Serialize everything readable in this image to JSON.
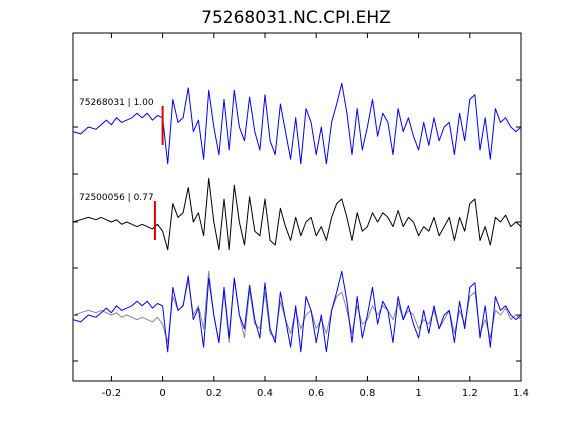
{
  "chart_data": {
    "type": "line",
    "title": "75268031.NC.CPI.EHZ",
    "xlabel": "",
    "ylabel": "",
    "xlim": [
      -0.35,
      1.4
    ],
    "x_ticks": [
      "-0.2",
      "0",
      "0.2",
      "0.4",
      "0.6",
      "0.8",
      "1",
      "1.2",
      "1.4"
    ],
    "x_tick_values": [
      -0.2,
      0,
      0.2,
      0.4,
      0.6,
      0.8,
      1.0,
      1.2,
      1.4
    ],
    "y_ticks_visible": false,
    "grid": false,
    "panels": [
      {
        "label": "75268031 | 1.00",
        "pick_time": 0.0,
        "series": [
          {
            "color": "#0000ff",
            "x": [
              -0.35,
              -0.32,
              -0.29,
              -0.26,
              -0.24,
              -0.22,
              -0.2,
              -0.18,
              -0.16,
              -0.14,
              -0.12,
              -0.1,
              -0.08,
              -0.06,
              -0.04,
              -0.02,
              0.0,
              0.02,
              0.04,
              0.06,
              0.08,
              0.1,
              0.12,
              0.14,
              0.16,
              0.18,
              0.2,
              0.22,
              0.24,
              0.26,
              0.28,
              0.3,
              0.32,
              0.34,
              0.36,
              0.38,
              0.4,
              0.42,
              0.44,
              0.46,
              0.48,
              0.5,
              0.52,
              0.54,
              0.56,
              0.58,
              0.6,
              0.62,
              0.64,
              0.66,
              0.68,
              0.7,
              0.72,
              0.74,
              0.76,
              0.78,
              0.8,
              0.82,
              0.84,
              0.86,
              0.88,
              0.9,
              0.92,
              0.94,
              0.96,
              0.98,
              1.0,
              1.02,
              1.04,
              1.06,
              1.08,
              1.1,
              1.12,
              1.14,
              1.16,
              1.18,
              1.2,
              1.22,
              1.24,
              1.26,
              1.28,
              1.3,
              1.32,
              1.34,
              1.36,
              1.38,
              1.4
            ],
            "y": [
              -0.1,
              -0.15,
              0.0,
              -0.05,
              0.05,
              0.15,
              0.05,
              0.2,
              0.1,
              0.15,
              0.2,
              0.3,
              0.2,
              0.3,
              0.15,
              0.25,
              0.2,
              -0.8,
              0.6,
              0.1,
              0.2,
              0.85,
              -0.1,
              0.15,
              -0.7,
              0.8,
              0.0,
              -0.6,
              0.6,
              -0.5,
              0.8,
              0.0,
              -0.3,
              0.65,
              -0.1,
              -0.5,
              0.7,
              -0.3,
              -0.6,
              0.5,
              -0.1,
              -0.7,
              0.2,
              -0.8,
              0.4,
              0.1,
              -0.6,
              0.0,
              -0.8,
              0.1,
              0.5,
              0.95,
              0.3,
              -0.6,
              0.4,
              -0.5,
              0.0,
              0.6,
              -0.2,
              0.3,
              0.1,
              -0.6,
              0.4,
              -0.1,
              0.2,
              -0.2,
              -0.5,
              0.1,
              -0.4,
              0.2,
              -0.3,
              0.0,
              0.1,
              -0.6,
              0.3,
              -0.3,
              0.6,
              0.7,
              -0.5,
              0.2,
              -0.7,
              0.4,
              0.1,
              0.2,
              0.0,
              -0.1,
              0.0
            ]
          }
        ]
      },
      {
        "label": "72500056 | 0.77",
        "pick_time": -0.03,
        "series": [
          {
            "color": "#000000",
            "x": [
              -0.35,
              -0.32,
              -0.29,
              -0.26,
              -0.24,
              -0.22,
              -0.2,
              -0.18,
              -0.16,
              -0.14,
              -0.12,
              -0.1,
              -0.08,
              -0.06,
              -0.04,
              -0.02,
              0.0,
              0.02,
              0.04,
              0.06,
              0.08,
              0.1,
              0.12,
              0.14,
              0.16,
              0.18,
              0.2,
              0.22,
              0.24,
              0.26,
              0.28,
              0.3,
              0.32,
              0.34,
              0.36,
              0.38,
              0.4,
              0.42,
              0.44,
              0.46,
              0.48,
              0.5,
              0.52,
              0.54,
              0.56,
              0.58,
              0.6,
              0.62,
              0.64,
              0.66,
              0.68,
              0.7,
              0.72,
              0.74,
              0.76,
              0.78,
              0.8,
              0.82,
              0.84,
              0.86,
              0.88,
              0.9,
              0.92,
              0.94,
              0.96,
              0.98,
              1.0,
              1.02,
              1.04,
              1.06,
              1.08,
              1.1,
              1.12,
              1.14,
              1.16,
              1.18,
              1.2,
              1.22,
              1.24,
              1.26,
              1.28,
              1.3,
              1.32,
              1.34,
              1.36,
              1.38,
              1.4
            ],
            "y": [
              0.0,
              0.05,
              0.1,
              0.05,
              0.1,
              0.05,
              0.0,
              0.05,
              -0.05,
              0.0,
              -0.05,
              -0.1,
              -0.05,
              -0.1,
              -0.15,
              -0.05,
              -0.2,
              -0.6,
              0.4,
              0.1,
              0.2,
              0.75,
              0.0,
              0.2,
              -0.3,
              0.95,
              0.0,
              -0.6,
              0.5,
              -0.6,
              0.8,
              0.0,
              -0.5,
              0.55,
              -0.2,
              -0.3,
              0.5,
              -0.4,
              -0.5,
              0.3,
              -0.1,
              -0.4,
              0.1,
              -0.3,
              0.0,
              0.1,
              -0.3,
              -0.1,
              -0.4,
              0.1,
              0.4,
              0.5,
              0.1,
              -0.4,
              0.2,
              -0.2,
              -0.1,
              0.2,
              0.0,
              0.2,
              0.1,
              -0.1,
              0.25,
              -0.1,
              0.1,
              0.0,
              -0.3,
              -0.1,
              -0.2,
              0.1,
              -0.3,
              -0.1,
              0.1,
              -0.4,
              0.1,
              -0.2,
              0.4,
              0.5,
              -0.4,
              -0.1,
              -0.5,
              0.1,
              0.0,
              0.15,
              -0.1,
              0.0,
              -0.1
            ]
          }
        ]
      },
      {
        "label": "",
        "pick_time": null,
        "series": [
          {
            "color": "#888888",
            "x": [
              -0.35,
              -0.32,
              -0.29,
              -0.26,
              -0.24,
              -0.22,
              -0.2,
              -0.18,
              -0.16,
              -0.14,
              -0.12,
              -0.1,
              -0.08,
              -0.06,
              -0.04,
              -0.02,
              0.0,
              0.02,
              0.04,
              0.06,
              0.08,
              0.1,
              0.12,
              0.14,
              0.16,
              0.18,
              0.2,
              0.22,
              0.24,
              0.26,
              0.28,
              0.3,
              0.32,
              0.34,
              0.36,
              0.38,
              0.4,
              0.42,
              0.44,
              0.46,
              0.48,
              0.5,
              0.52,
              0.54,
              0.56,
              0.58,
              0.6,
              0.62,
              0.64,
              0.66,
              0.68,
              0.7,
              0.72,
              0.74,
              0.76,
              0.78,
              0.8,
              0.82,
              0.84,
              0.86,
              0.88,
              0.9,
              0.92,
              0.94,
              0.96,
              0.98,
              1.0,
              1.02,
              1.04,
              1.06,
              1.08,
              1.1,
              1.12,
              1.14,
              1.16,
              1.18,
              1.2,
              1.22,
              1.24,
              1.26,
              1.28,
              1.3,
              1.32,
              1.34,
              1.36,
              1.38,
              1.4
            ],
            "y": [
              0.0,
              0.05,
              0.1,
              0.05,
              0.1,
              0.05,
              0.0,
              0.05,
              -0.05,
              0.0,
              -0.05,
              -0.1,
              -0.05,
              -0.1,
              -0.15,
              -0.05,
              -0.2,
              -0.6,
              0.4,
              0.1,
              0.2,
              0.75,
              0.0,
              0.2,
              -0.3,
              0.95,
              0.0,
              -0.6,
              0.5,
              -0.6,
              0.8,
              0.0,
              -0.5,
              0.55,
              -0.2,
              -0.3,
              0.5,
              -0.4,
              -0.5,
              0.3,
              -0.1,
              -0.4,
              0.1,
              -0.3,
              0.0,
              0.1,
              -0.3,
              -0.1,
              -0.4,
              0.1,
              0.4,
              0.5,
              0.1,
              -0.4,
              0.2,
              -0.2,
              -0.1,
              0.2,
              0.0,
              0.2,
              0.1,
              -0.1,
              0.25,
              -0.1,
              0.1,
              0.0,
              -0.3,
              -0.1,
              -0.2,
              0.1,
              -0.3,
              -0.1,
              0.1,
              -0.4,
              0.1,
              -0.2,
              0.4,
              0.5,
              -0.4,
              -0.1,
              -0.5,
              0.1,
              0.0,
              0.15,
              -0.1,
              0.0,
              -0.1
            ]
          },
          {
            "color": "#0000ff",
            "x": [
              -0.35,
              -0.32,
              -0.29,
              -0.26,
              -0.24,
              -0.22,
              -0.2,
              -0.18,
              -0.16,
              -0.14,
              -0.12,
              -0.1,
              -0.08,
              -0.06,
              -0.04,
              -0.02,
              0.0,
              0.02,
              0.04,
              0.06,
              0.08,
              0.1,
              0.12,
              0.14,
              0.16,
              0.18,
              0.2,
              0.22,
              0.24,
              0.26,
              0.28,
              0.3,
              0.32,
              0.34,
              0.36,
              0.38,
              0.4,
              0.42,
              0.44,
              0.46,
              0.48,
              0.5,
              0.52,
              0.54,
              0.56,
              0.58,
              0.6,
              0.62,
              0.64,
              0.66,
              0.68,
              0.7,
              0.72,
              0.74,
              0.76,
              0.78,
              0.8,
              0.82,
              0.84,
              0.86,
              0.88,
              0.9,
              0.92,
              0.94,
              0.96,
              0.98,
              1.0,
              1.02,
              1.04,
              1.06,
              1.08,
              1.1,
              1.12,
              1.14,
              1.16,
              1.18,
              1.2,
              1.22,
              1.24,
              1.26,
              1.28,
              1.3,
              1.32,
              1.34,
              1.36,
              1.38,
              1.4
            ],
            "y": [
              -0.1,
              -0.15,
              0.0,
              -0.05,
              0.05,
              0.15,
              0.05,
              0.2,
              0.1,
              0.15,
              0.2,
              0.3,
              0.2,
              0.3,
              0.15,
              0.25,
              0.2,
              -0.8,
              0.6,
              0.1,
              0.2,
              0.85,
              -0.1,
              0.15,
              -0.7,
              0.8,
              0.0,
              -0.6,
              0.6,
              -0.5,
              0.8,
              0.0,
              -0.3,
              0.65,
              -0.1,
              -0.5,
              0.7,
              -0.3,
              -0.6,
              0.5,
              -0.1,
              -0.7,
              0.2,
              -0.8,
              0.4,
              0.1,
              -0.6,
              0.0,
              -0.8,
              0.1,
              0.5,
              0.95,
              0.3,
              -0.6,
              0.4,
              -0.5,
              0.0,
              0.6,
              -0.2,
              0.3,
              0.1,
              -0.6,
              0.4,
              -0.1,
              0.2,
              -0.2,
              -0.5,
              0.1,
              -0.4,
              0.2,
              -0.3,
              0.0,
              0.1,
              -0.6,
              0.3,
              -0.3,
              0.6,
              0.7,
              -0.5,
              0.2,
              -0.7,
              0.4,
              0.1,
              0.2,
              0.0,
              -0.1,
              0.0
            ]
          }
        ]
      }
    ],
    "pick_color": "#dd0000"
  }
}
